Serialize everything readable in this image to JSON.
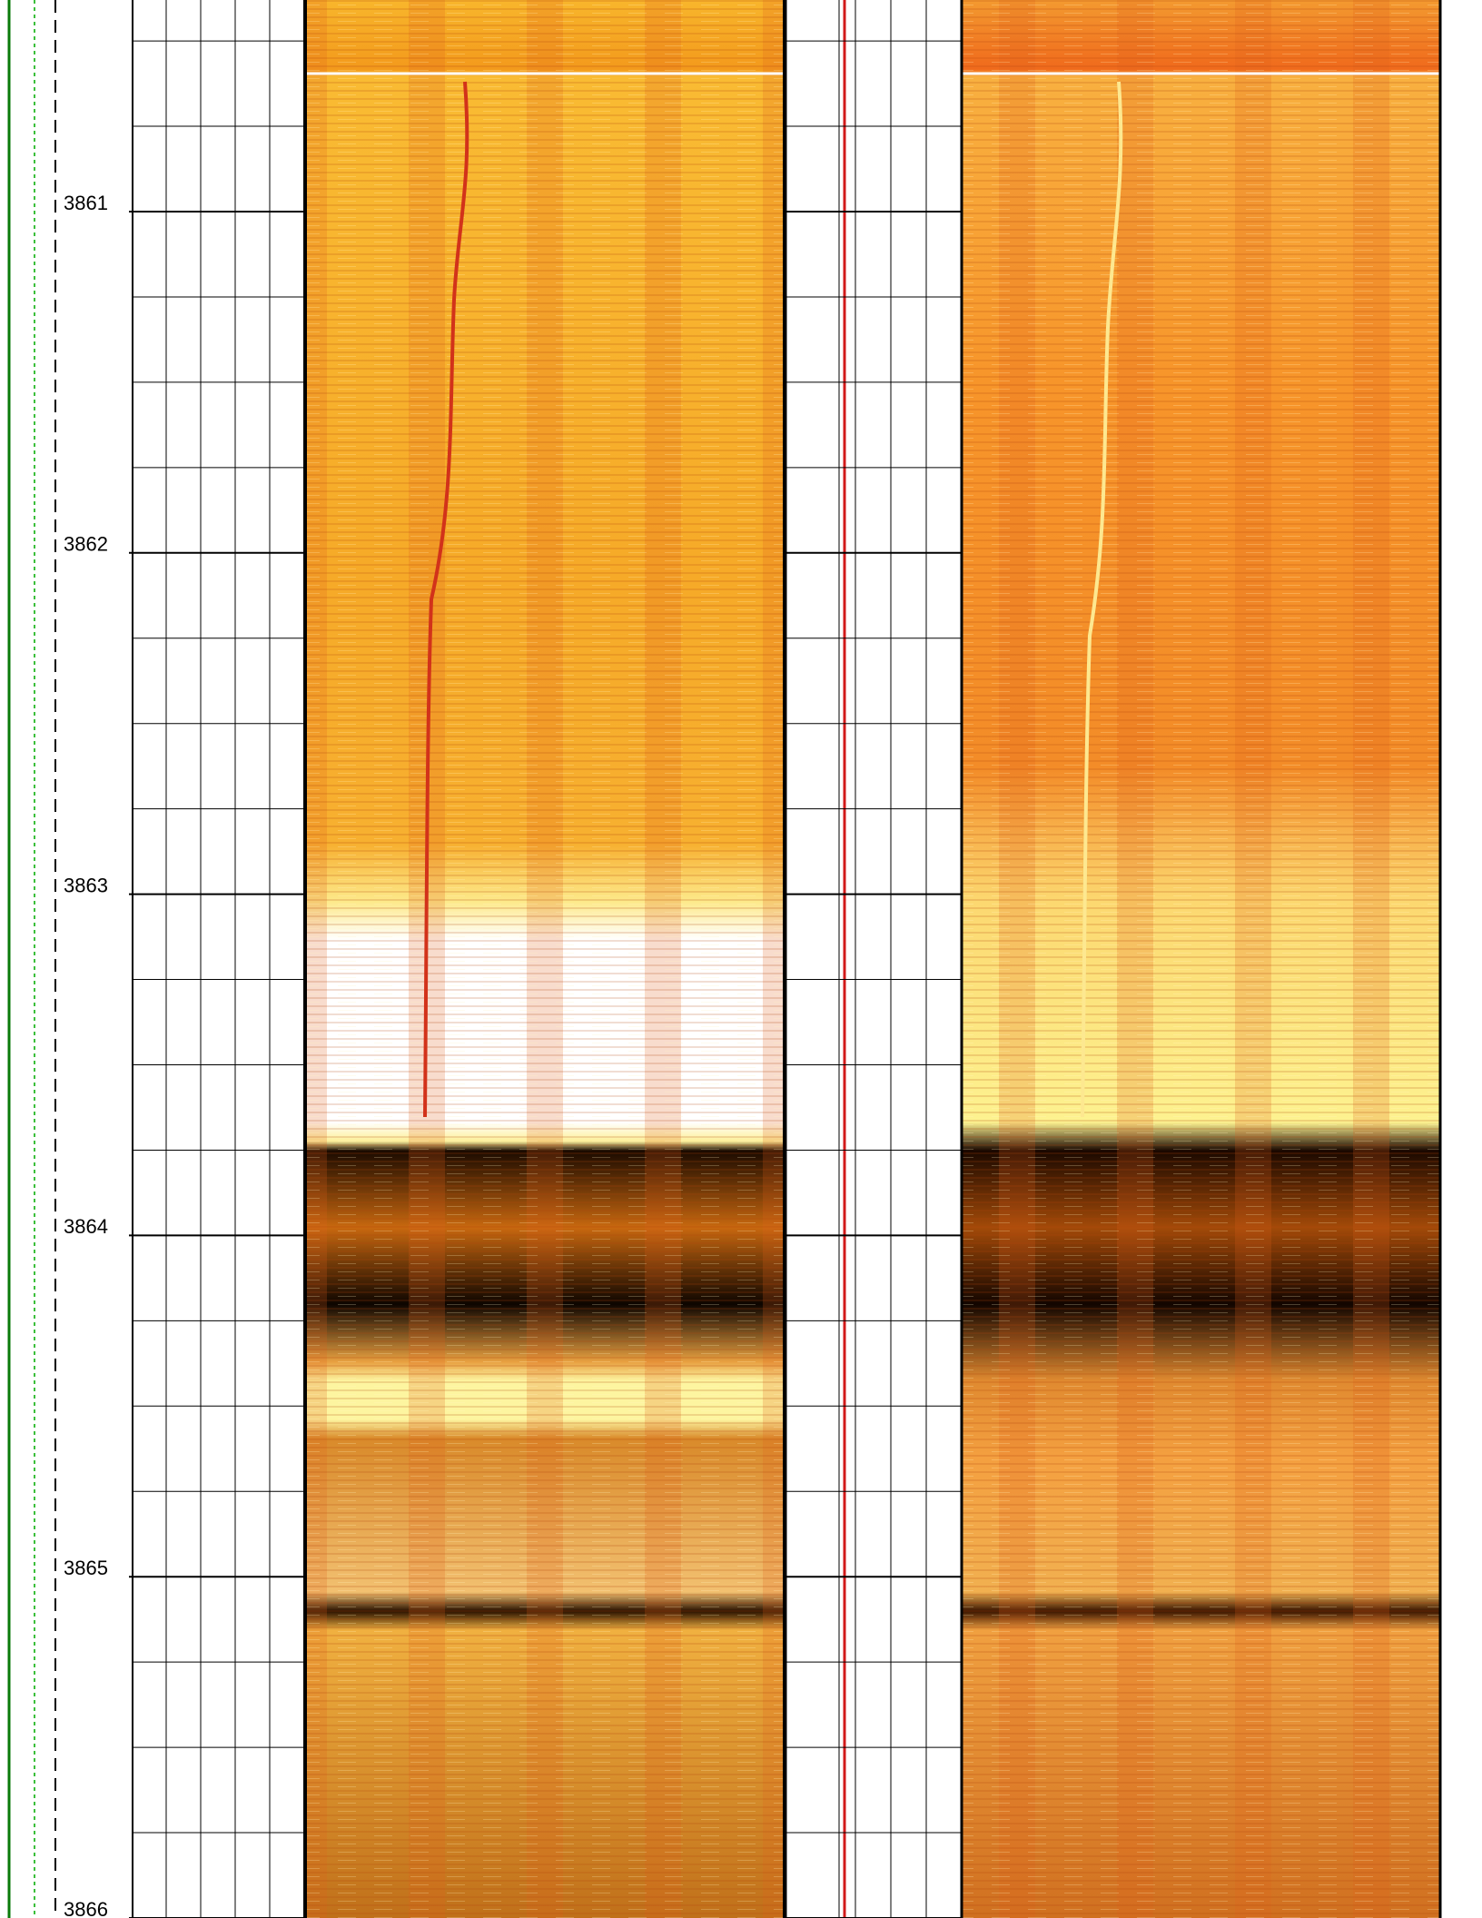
{
  "chart_data": {
    "type": "well-log",
    "ylim": [
      3860.38,
      3866.0
    ],
    "yticks": [
      3861,
      3862,
      3863,
      3864,
      3865,
      3866
    ],
    "minor_divisions": 4,
    "grid": true
  }
}
